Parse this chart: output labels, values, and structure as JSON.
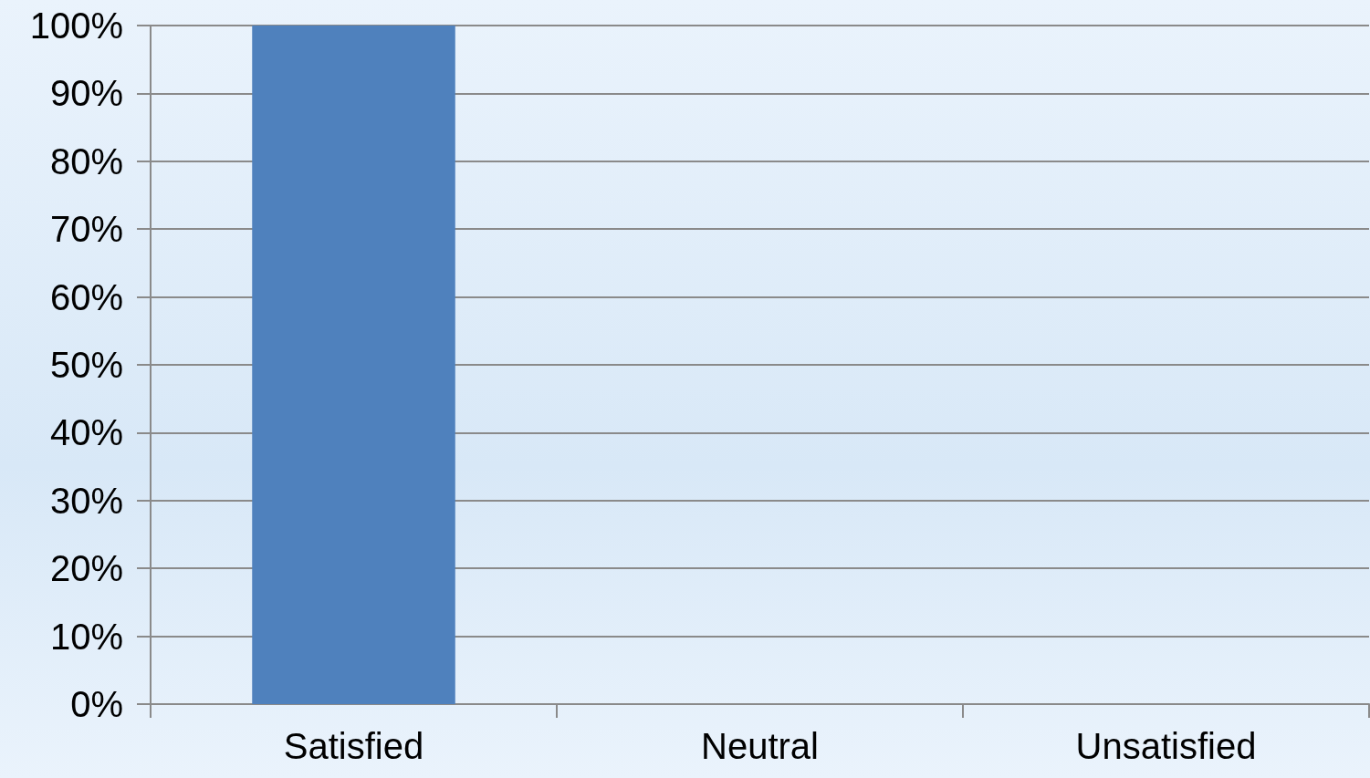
{
  "chart_data": {
    "type": "bar",
    "categories": [
      "Satisfied",
      "Neutral",
      "Unsatisfied"
    ],
    "values": [
      100,
      0,
      0
    ],
    "color": "#4f81bd",
    "ylim": [
      0,
      100
    ],
    "yticks": [
      {
        "value": 0,
        "label": "0%"
      },
      {
        "value": 10,
        "label": "10%"
      },
      {
        "value": 20,
        "label": "20%"
      },
      {
        "value": 30,
        "label": "30%"
      },
      {
        "value": 40,
        "label": "40%"
      },
      {
        "value": 50,
        "label": "50%"
      },
      {
        "value": 60,
        "label": "60%"
      },
      {
        "value": 70,
        "label": "70%"
      },
      {
        "value": 80,
        "label": "80%"
      },
      {
        "value": 90,
        "label": "90%"
      },
      {
        "value": 100,
        "label": "100%"
      }
    ],
    "grid": "y"
  }
}
